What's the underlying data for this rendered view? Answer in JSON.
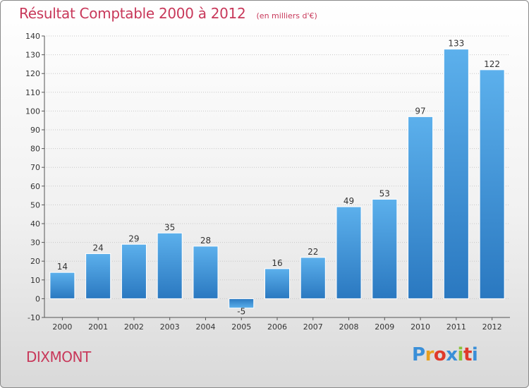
{
  "chart_data": {
    "type": "bar",
    "title": "Résultat Comptable 2000 à 2012",
    "subtitle": "(en milliers d'€)",
    "categories": [
      "2000",
      "2001",
      "2002",
      "2003",
      "2004",
      "2005",
      "2006",
      "2007",
      "2008",
      "2009",
      "2010",
      "2011",
      "2012"
    ],
    "values": [
      14,
      24,
      29,
      35,
      28,
      -5,
      16,
      22,
      49,
      53,
      97,
      133,
      122
    ],
    "xlabel": "",
    "ylabel": "",
    "ylim": [
      -10,
      140
    ],
    "yticks": [
      -10,
      0,
      10,
      20,
      30,
      40,
      50,
      60,
      70,
      80,
      90,
      100,
      110,
      120,
      130,
      140
    ],
    "grid": true,
    "bar_color": "#4a9de0"
  },
  "footer": {
    "commune": "DIXMONT",
    "logo_letters": [
      "P",
      "r",
      "o",
      "x",
      "i",
      "t",
      "i"
    ],
    "logo_colors": [
      "#3a8fd8",
      "#e8a020",
      "#e03a2a",
      "#3a8fd8",
      "#8ac23a",
      "#e03a2a",
      "#3a8fd8"
    ]
  }
}
